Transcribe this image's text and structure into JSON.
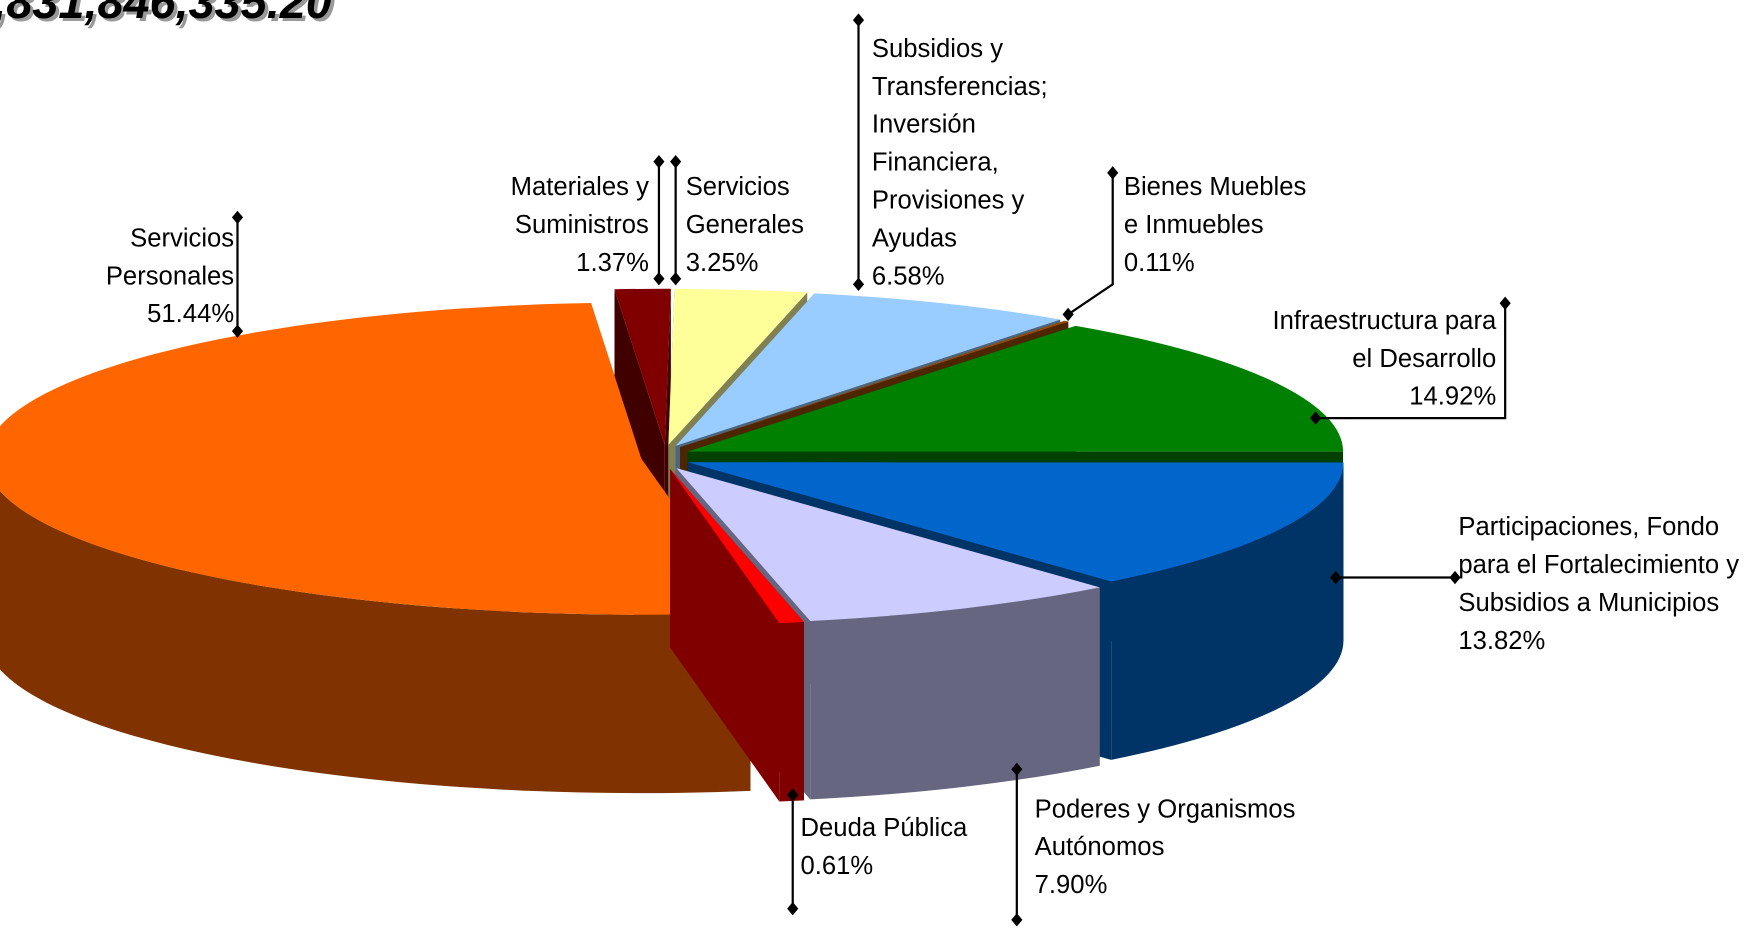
{
  "chart_data": {
    "type": "pie",
    "title": ",831,846,335.20",
    "categories": [
      "Materiales y Suministros",
      "Servicios Generales",
      "Subsidios y Transferencias; Inversión Financiera, Provisiones y Ayudas",
      "Bienes Muebles e Inmuebles",
      "Infraestructura para el Desarrollo",
      "Participaciones, Fondo para el Fortalecimiento y Subsidios a Municipios",
      "Poderes y Organismos Autónomos",
      "Deuda Pública",
      "Servicios Personales"
    ],
    "values": [
      1.37,
      3.25,
      6.58,
      0.11,
      14.92,
      13.82,
      7.9,
      0.61,
      51.44
    ],
    "value_labels": [
      "1.37%",
      "3.25%",
      "6.58%",
      "0.11%",
      "14.92%",
      "13.82%",
      "7.90%",
      "0.61%",
      "51.44%"
    ],
    "colors": [
      "#800000",
      "#ffff99",
      "#99ccff",
      "#994c00",
      "#008000",
      "#0066cc",
      "#ccccff",
      "#ff0000",
      "#ff6600"
    ],
    "side_colors": [
      "#400000",
      "#808050",
      "#4d6680",
      "#4d2600",
      "#004000",
      "#003366",
      "#666680",
      "#800000",
      "#803300"
    ]
  }
}
